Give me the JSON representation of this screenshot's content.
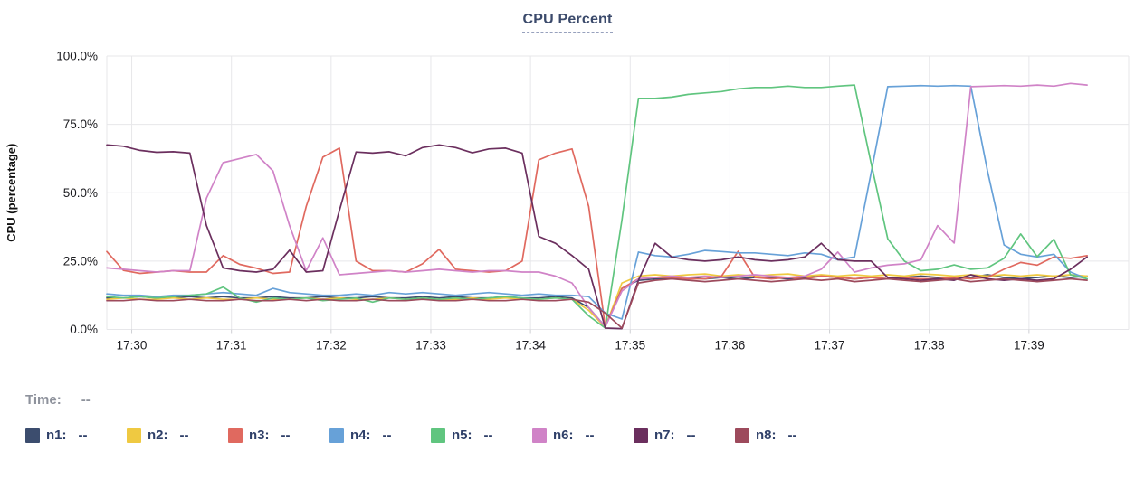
{
  "chart": {
    "title": "CPU Percent"
  },
  "legend": {
    "time_label": "Time:",
    "value_placeholder": "--"
  },
  "chart_data": {
    "type": "line",
    "title": "CPU Percent",
    "xlabel": "Time",
    "ylabel": "CPU (percentage)",
    "x_unit": "minutes after 17:30",
    "x_tick_minutes": [
      0,
      1,
      2,
      3,
      4,
      5,
      6,
      7,
      8,
      9
    ],
    "x_tick_labels": [
      "17:30",
      "17:31",
      "17:32",
      "17:33",
      "17:34",
      "17:35",
      "17:36",
      "17:37",
      "17:38",
      "17:39"
    ],
    "x_range_minutes": [
      -0.25,
      10
    ],
    "ylim": [
      0,
      100
    ],
    "y_ticks": [
      {
        "value": 0,
        "label": "0.0%"
      },
      {
        "value": 25,
        "label": "25.0%"
      },
      {
        "value": 50,
        "label": "50.0%"
      },
      {
        "value": 75,
        "label": "75.0%"
      },
      {
        "value": 100,
        "label": "100.0%"
      }
    ],
    "grid": true,
    "legend_position": "bottom-left",
    "sample_start_min": -0.25,
    "sample_step_min": 0.166667,
    "series": [
      {
        "name": "n1",
        "color": "#3c4d6e",
        "values": [
          11.5,
          11.5,
          12,
          11.5,
          11.5,
          12,
          11.5,
          12,
          11.5,
          11.5,
          12,
          11.5,
          11.5,
          12,
          11.5,
          11.5,
          12,
          11.5,
          11.5,
          12,
          11.5,
          12,
          11.5,
          11.5,
          12,
          11.5,
          11.5,
          12,
          11.5,
          8,
          1,
          15,
          18,
          18.5,
          18.5,
          19,
          18.5,
          19,
          18.5,
          19,
          19,
          18.5,
          19,
          19.5,
          19,
          18.5,
          19,
          18.5,
          19,
          19.5,
          19,
          18.5,
          19,
          20,
          19,
          18.5,
          19,
          19.5,
          19,
          19.5
        ]
      },
      {
        "name": "n2",
        "color": "#efc941",
        "values": [
          11,
          11.5,
          11,
          11,
          11.5,
          11,
          11.5,
          11,
          11,
          11.5,
          11,
          11,
          11.5,
          11,
          11.5,
          11,
          11,
          11.5,
          11,
          11.5,
          11,
          11,
          11.5,
          11,
          11.5,
          11,
          11,
          11.5,
          11,
          7,
          0.8,
          17,
          19.5,
          20,
          19.5,
          20,
          20.3,
          19.5,
          20,
          19.5,
          20,
          20.3,
          19.5,
          20,
          19.5,
          20,
          19.5,
          20,
          19.5,
          20.3,
          20,
          19.5,
          20,
          19.5,
          20,
          19.5,
          20,
          19.5,
          20,
          19.5
        ]
      },
      {
        "name": "n3",
        "color": "#e0695f",
        "values": [
          28.5,
          21.6,
          20.5,
          21,
          21.5,
          21,
          21,
          27,
          23.8,
          22.4,
          20.5,
          21,
          45,
          63,
          66.3,
          25,
          21.5,
          21.5,
          21,
          24,
          29.3,
          22,
          21.5,
          21,
          21.5,
          25,
          62,
          64.5,
          66,
          45,
          1,
          15,
          18.5,
          19,
          19,
          18.5,
          18.5,
          19.5,
          28.6,
          19,
          18.5,
          19,
          18.5,
          19.5,
          19,
          18.5,
          19,
          18.5,
          19,
          18.5,
          18.5,
          19,
          18.5,
          19,
          22,
          24.5,
          23.5,
          26.5,
          26,
          27
        ]
      },
      {
        "name": "n4",
        "color": "#67a1d8",
        "values": [
          13,
          12.5,
          12.5,
          12,
          12.5,
          12.5,
          13,
          13.5,
          13,
          12.5,
          15,
          13.5,
          13,
          12.5,
          12.5,
          13,
          12.5,
          13.5,
          13,
          13.5,
          13,
          12.5,
          13,
          13.5,
          13,
          12.5,
          13,
          12.5,
          12.5,
          12,
          6,
          3.8,
          28.3,
          27,
          26.5,
          27.5,
          28.9,
          28.5,
          28,
          28,
          27.5,
          27,
          28,
          27.5,
          25.5,
          26.5,
          57.4,
          88.8,
          89,
          89.2,
          89,
          89.2,
          89,
          58,
          30.9,
          27.5,
          26.5,
          27.5,
          21,
          18.5
        ]
      },
      {
        "name": "n5",
        "color": "#60c57f",
        "values": [
          12,
          11.5,
          12,
          11.5,
          12,
          12.5,
          13,
          15.5,
          11.5,
          10,
          11.5,
          11,
          11.5,
          10.5,
          11,
          11.5,
          10,
          11.5,
          11,
          11.5,
          11,
          11.5,
          11,
          11.5,
          12,
          11.5,
          11,
          11.5,
          11,
          5,
          0.5,
          40,
          84.5,
          84.5,
          85,
          86,
          86.5,
          87,
          88,
          88.5,
          88.5,
          89,
          88.5,
          88.5,
          89,
          89.4,
          60.7,
          33.2,
          25,
          21.5,
          22,
          23.6,
          22,
          22.5,
          26,
          34.9,
          26.6,
          33,
          20,
          18.5
        ]
      },
      {
        "name": "n6",
        "color": "#d083c7",
        "values": [
          22.5,
          22,
          21.5,
          21,
          21.5,
          21.5,
          48,
          61,
          62.5,
          64,
          58,
          38,
          21.5,
          33.5,
          20,
          20.5,
          21,
          21.5,
          21,
          21.5,
          22,
          21.5,
          21,
          21.5,
          21.5,
          21,
          21,
          19.5,
          17,
          8,
          1,
          14,
          18.5,
          19,
          19.5,
          19,
          19.5,
          19,
          19.5,
          20,
          19.5,
          19,
          19.5,
          22,
          28.3,
          21,
          22.5,
          23.5,
          24,
          25.5,
          38,
          31.6,
          88.8,
          89,
          89.2,
          89,
          89.4,
          89,
          90,
          89.4
        ]
      },
      {
        "name": "n7",
        "color": "#6b2f5e",
        "values": [
          67.5,
          67,
          65.5,
          64.8,
          65,
          64.5,
          38,
          22.5,
          21.5,
          21,
          22,
          29,
          21,
          21.5,
          43.5,
          64.9,
          64.5,
          65,
          63.5,
          66.5,
          67.5,
          66.5,
          64.6,
          66,
          66.3,
          64.5,
          34,
          31.5,
          27,
          22,
          0.5,
          0.3,
          18,
          31.5,
          26.5,
          25.5,
          25,
          25.5,
          26.5,
          25.5,
          25,
          25.5,
          26.5,
          31.5,
          25.5,
          25,
          25,
          19,
          18.5,
          18,
          18.5,
          18,
          20,
          18.5,
          18,
          18.5,
          18,
          18.5,
          22,
          26.5
        ]
      },
      {
        "name": "n8",
        "color": "#9d4a5c",
        "values": [
          10.5,
          10.5,
          11,
          10.5,
          10.5,
          11,
          10.5,
          10.5,
          11,
          10.5,
          10.5,
          11,
          10.5,
          11,
          10.5,
          10.5,
          11,
          10.5,
          10.5,
          11,
          10.5,
          10.5,
          11,
          10.5,
          10.5,
          11,
          10.5,
          10.5,
          11,
          10,
          6,
          0.5,
          17,
          18,
          18.5,
          18,
          17.5,
          18,
          18.5,
          18,
          17.5,
          18,
          18.5,
          18,
          18.5,
          17.5,
          18,
          18.5,
          18,
          17.5,
          18,
          18.5,
          17.5,
          18,
          18.5,
          18,
          17.5,
          18,
          18.5,
          18
        ]
      }
    ],
    "style": {
      "grid_color": "#e7e7ea",
      "tick_color": "#cfd0d4",
      "axis_text_color": "#1b1b1f",
      "title_color": "#3b4a6b"
    }
  }
}
